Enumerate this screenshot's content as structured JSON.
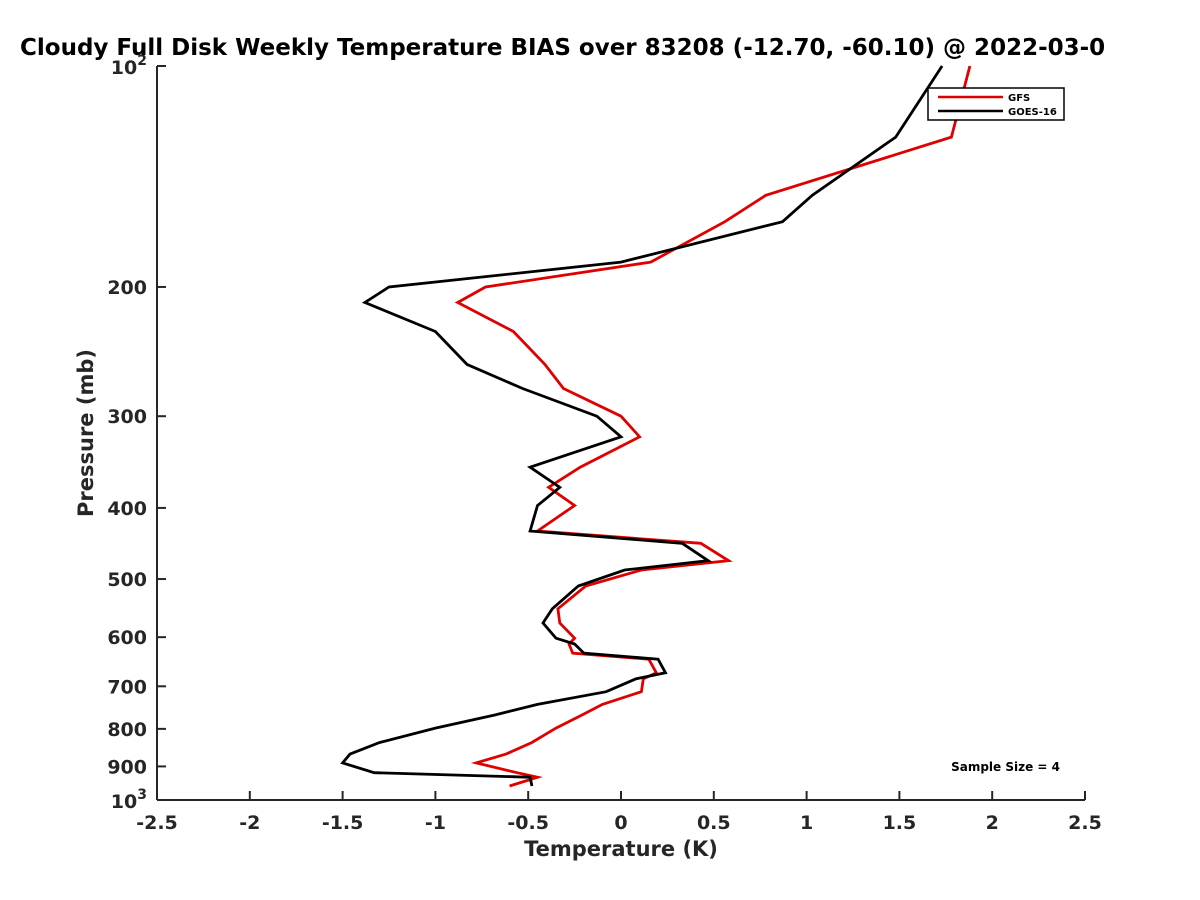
{
  "chart_data": {
    "type": "line",
    "title": "Cloudy Full Disk Weekly Temperature BIAS over 83208 (-12.70, -60.10) @ 2022-03-0",
    "xlabel": "Temperature (K)",
    "ylabel": "Pressure (mb)",
    "xlim": [
      -2.5,
      2.5
    ],
    "ylim": [
      100,
      1000
    ],
    "y_scale": "log",
    "y_reversed": true,
    "x_ticks": [
      "-2.5",
      "-2",
      "-1.5",
      "-1",
      "-0.5",
      "0",
      "0.5",
      "1",
      "1.5",
      "2",
      "2.5"
    ],
    "y_ticks": [
      {
        "value": 100,
        "base": "10",
        "exp": "2"
      },
      {
        "value": 200,
        "label": "200"
      },
      {
        "value": 300,
        "label": "300"
      },
      {
        "value": 400,
        "label": "400"
      },
      {
        "value": 500,
        "label": "500"
      },
      {
        "value": 600,
        "label": "600"
      },
      {
        "value": 700,
        "label": "700"
      },
      {
        "value": 800,
        "label": "800"
      },
      {
        "value": 900,
        "label": "900"
      },
      {
        "value": 1000,
        "base": "10",
        "exp": "3"
      }
    ],
    "legend_position": "top-right",
    "annotation": "Sample Size = 4",
    "series": [
      {
        "name": "GFS",
        "color": "#e00000",
        "points": [
          [
            1.88,
            100
          ],
          [
            1.78,
            125
          ],
          [
            0.78,
            150
          ],
          [
            0.56,
            163
          ],
          [
            0.16,
            185
          ],
          [
            -0.73,
            200
          ],
          [
            -0.88,
            210
          ],
          [
            -0.58,
            230
          ],
          [
            -0.41,
            255
          ],
          [
            -0.31,
            275
          ],
          [
            0.0,
            300
          ],
          [
            0.1,
            320
          ],
          [
            -0.22,
            352
          ],
          [
            -0.39,
            375
          ],
          [
            -0.25,
            397
          ],
          [
            -0.45,
            430
          ],
          [
            0.43,
            447
          ],
          [
            0.58,
            472
          ],
          [
            0.11,
            486
          ],
          [
            -0.19,
            511
          ],
          [
            -0.34,
            549
          ],
          [
            -0.33,
            574
          ],
          [
            -0.25,
            602
          ],
          [
            -0.28,
            613
          ],
          [
            -0.26,
            631
          ],
          [
            0.15,
            643
          ],
          [
            0.19,
            671
          ],
          [
            0.12,
            684
          ],
          [
            0.11,
            712
          ],
          [
            -0.1,
            741
          ],
          [
            -0.21,
            766
          ],
          [
            -0.35,
            798
          ],
          [
            -0.48,
            835
          ],
          [
            -0.62,
            866
          ],
          [
            -0.78,
            890
          ],
          [
            -0.56,
            918
          ],
          [
            -0.45,
            931
          ],
          [
            -0.6,
            957
          ]
        ]
      },
      {
        "name": "GOES-16",
        "color": "#000000",
        "points": [
          [
            1.73,
            100
          ],
          [
            1.48,
            125
          ],
          [
            1.03,
            150
          ],
          [
            0.87,
            163
          ],
          [
            0.0,
            185
          ],
          [
            -1.25,
            200
          ],
          [
            -1.38,
            210
          ],
          [
            -1.0,
            230
          ],
          [
            -0.83,
            255
          ],
          [
            -0.53,
            275
          ],
          [
            -0.13,
            300
          ],
          [
            0.0,
            320
          ],
          [
            -0.49,
            352
          ],
          [
            -0.33,
            375
          ],
          [
            -0.45,
            397
          ],
          [
            -0.49,
            430
          ],
          [
            0.33,
            447
          ],
          [
            0.47,
            472
          ],
          [
            0.02,
            486
          ],
          [
            -0.23,
            511
          ],
          [
            -0.37,
            549
          ],
          [
            -0.42,
            574
          ],
          [
            -0.35,
            602
          ],
          [
            -0.25,
            613
          ],
          [
            -0.2,
            631
          ],
          [
            0.2,
            643
          ],
          [
            0.24,
            671
          ],
          [
            0.08,
            684
          ],
          [
            -0.08,
            712
          ],
          [
            -0.45,
            741
          ],
          [
            -0.68,
            766
          ],
          [
            -1.0,
            798
          ],
          [
            -1.3,
            835
          ],
          [
            -1.46,
            866
          ],
          [
            -1.5,
            890
          ],
          [
            -1.33,
            918
          ],
          [
            -0.49,
            931
          ],
          [
            -0.48,
            957
          ]
        ]
      }
    ]
  }
}
